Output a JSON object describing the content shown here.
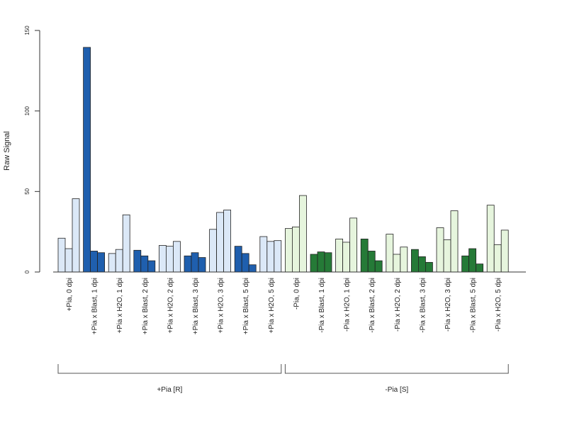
{
  "chart_data": {
    "type": "bar",
    "ylabel": "Raw Signal",
    "ylim": [
      0,
      150
    ],
    "yticks": [
      0,
      50,
      100,
      150
    ],
    "colors": {
      "light_blue": "#dbe8f7",
      "dark_blue": "#1f5fae",
      "light_green": "#e6f5dd",
      "dark_green": "#257a37"
    },
    "categories": [
      {
        "label": "+Pia, 0 dpi",
        "color": "light_blue",
        "values": [
          21,
          14.5,
          45.5
        ]
      },
      {
        "label": "+Pia x Blast, 1 dpi",
        "color": "dark_blue",
        "values": [
          139.5,
          13,
          12
        ]
      },
      {
        "label": "+Pia x H2O, 1 dpi",
        "color": "light_blue",
        "values": [
          11.5,
          14,
          35.5
        ]
      },
      {
        "label": "+Pia x Blast, 2 dpi",
        "color": "dark_blue",
        "values": [
          13.5,
          10,
          7
        ]
      },
      {
        "label": "+Pia x H2O, 2 dpi",
        "color": "light_blue",
        "values": [
          16.5,
          16,
          19
        ]
      },
      {
        "label": "+Pia x Blast, 3 dpi",
        "color": "dark_blue",
        "values": [
          10,
          12,
          9
        ]
      },
      {
        "label": "+Pia x H2O, 3 dpi",
        "color": "light_blue",
        "values": [
          26.5,
          37,
          38.5
        ]
      },
      {
        "label": "+Pia x Blast, 5 dpi",
        "color": "dark_blue",
        "values": [
          16,
          11.5,
          4.5
        ]
      },
      {
        "label": "+Pia x H2O, 5 dpi",
        "color": "light_blue",
        "values": [
          22,
          19,
          19.5
        ]
      },
      {
        "label": "-Pia, 0 dpi",
        "color": "light_green",
        "values": [
          27,
          28,
          47.5
        ]
      },
      {
        "label": "-Pia x Blast, 1 dpi",
        "color": "dark_green",
        "values": [
          11,
          12.5,
          12
        ]
      },
      {
        "label": "-Pia x H2O, 1 dpi",
        "color": "light_green",
        "values": [
          20.5,
          18.5,
          33.5
        ]
      },
      {
        "label": "-Pia x Blast, 2 dpi",
        "color": "dark_green",
        "values": [
          20.5,
          13,
          7
        ]
      },
      {
        "label": "-Pia x H2O, 2 dpi",
        "color": "light_green",
        "values": [
          23.5,
          11,
          15.5
        ]
      },
      {
        "label": "-Pia x Blast, 3 dpi",
        "color": "dark_green",
        "values": [
          14,
          9.5,
          6
        ]
      },
      {
        "label": "-Pia x H2O, 3 dpi",
        "color": "light_green",
        "values": [
          27.5,
          20,
          38
        ]
      },
      {
        "label": "-Pia x Blast, 5 dpi",
        "color": "dark_green",
        "values": [
          10,
          14.5,
          5
        ]
      },
      {
        "label": "-Pia x H2O, 5 dpi",
        "color": "light_green",
        "values": [
          41.5,
          17,
          26
        ]
      }
    ],
    "groups": [
      {
        "label": "+Pia [R]",
        "first": 0,
        "last": 8
      },
      {
        "label": "-Pia [S]",
        "first": 9,
        "last": 17
      }
    ]
  }
}
